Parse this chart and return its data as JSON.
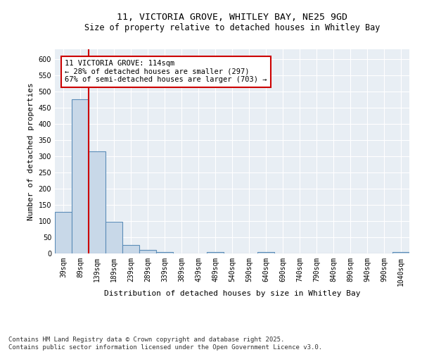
{
  "title_line1": "11, VICTORIA GROVE, WHITLEY BAY, NE25 9GD",
  "title_line2": "Size of property relative to detached houses in Whitley Bay",
  "xlabel": "Distribution of detached houses by size in Whitley Bay",
  "ylabel": "Number of detached properties",
  "categories": [
    "39sqm",
    "89sqm",
    "139sqm",
    "189sqm",
    "239sqm",
    "289sqm",
    "339sqm",
    "389sqm",
    "439sqm",
    "489sqm",
    "540sqm",
    "590sqm",
    "640sqm",
    "690sqm",
    "740sqm",
    "790sqm",
    "840sqm",
    "890sqm",
    "940sqm",
    "990sqm",
    "1040sqm"
  ],
  "values": [
    128,
    475,
    315,
    98,
    25,
    10,
    5,
    0,
    0,
    5,
    0,
    0,
    5,
    0,
    0,
    0,
    0,
    0,
    0,
    0,
    5
  ],
  "bar_color": "#c8d8e8",
  "bar_edge_color": "#5b8db8",
  "background_color": "#e8eef4",
  "grid_color": "#ffffff",
  "annotation_box_color": "#cc0000",
  "annotation_text": "11 VICTORIA GROVE: 114sqm\n← 28% of detached houses are smaller (297)\n67% of semi-detached houses are larger (703) →",
  "property_line_x": 1.5,
  "ylim": [
    0,
    630
  ],
  "yticks": [
    0,
    50,
    100,
    150,
    200,
    250,
    300,
    350,
    400,
    450,
    500,
    550,
    600
  ],
  "footnote": "Contains HM Land Registry data © Crown copyright and database right 2025.\nContains public sector information licensed under the Open Government Licence v3.0.",
  "title_fontsize": 9.5,
  "subtitle_fontsize": 8.5,
  "label_fontsize": 8,
  "tick_fontsize": 7,
  "annotation_fontsize": 7.5,
  "footnote_fontsize": 6.5
}
